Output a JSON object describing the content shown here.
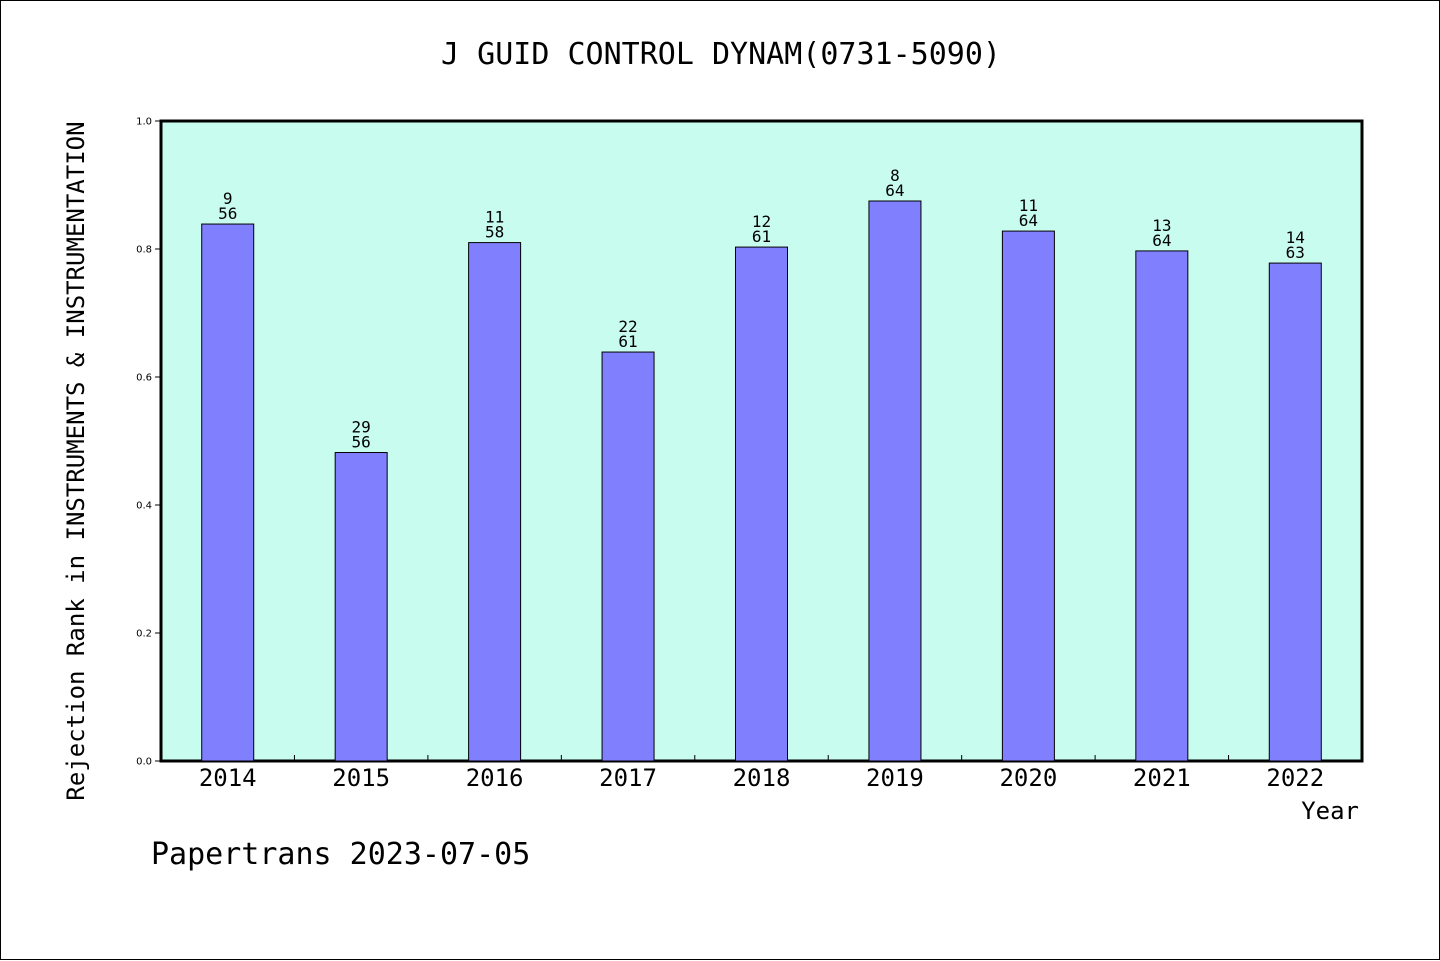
{
  "chart_data": {
    "type": "bar",
    "title": "J GUID CONTROL DYNAM(0731-5090)",
    "xlabel": "Year",
    "ylabel": "Rejection Rank in INSTRUMENTS & INSTRUMENTATION",
    "categories": [
      "2014",
      "2015",
      "2016",
      "2017",
      "2018",
      "2019",
      "2020",
      "2021",
      "2022"
    ],
    "values": [
      0.839,
      0.482,
      0.81,
      0.639,
      0.803,
      0.875,
      0.828,
      0.797,
      0.778
    ],
    "data_labels": [
      {
        "top": "9",
        "bottom": "56"
      },
      {
        "top": "29",
        "bottom": "56"
      },
      {
        "top": "11",
        "bottom": "58"
      },
      {
        "top": "22",
        "bottom": "61"
      },
      {
        "top": "12",
        "bottom": "61"
      },
      {
        "top": "8",
        "bottom": "64"
      },
      {
        "top": "11",
        "bottom": "64"
      },
      {
        "top": "13",
        "bottom": "64"
      },
      {
        "top": "14",
        "bottom": "63"
      }
    ],
    "ylim": [
      0,
      1
    ],
    "yticks": [
      "0.0",
      "0.2",
      "0.4",
      "0.6",
      "0.8",
      "1.0"
    ],
    "grid": false,
    "legend": "none",
    "colors": {
      "bar_fill": "#8080ff",
      "plot_background": "#c8fcee",
      "axis": "#000000"
    }
  },
  "footer": {
    "credit": "Papertrans 2023-07-05"
  }
}
